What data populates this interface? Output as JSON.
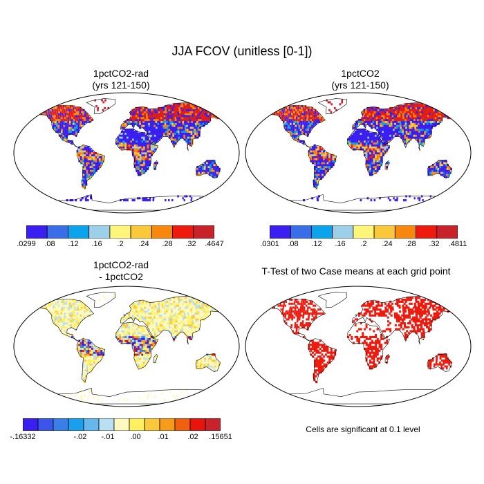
{
  "title": "JJA FCOV (unitless [0-1])",
  "panels": [
    {
      "title_line1": "1pctCO2-rad",
      "title_line2": "(yrs 121-150)"
    },
    {
      "title_line1": "1pctCO2",
      "title_line2": "(yrs 121-150)"
    },
    {
      "title_line1": "1pctCO2-rad",
      "title_line2": "- 1pctCO2"
    },
    {
      "title_line1": "T-Test of two Case means at each grid point",
      "title_line2": ""
    }
  ],
  "colorbars": [
    {
      "colors": [
        "#3b1ff0",
        "#3a6ee8",
        "#0aa3ec",
        "#9ccfe8",
        "#fff57a",
        "#fbc83c",
        "#f7870f",
        "#ef1a0e",
        "#c8232b"
      ],
      "labels": [
        ".0299",
        ".08",
        ".12",
        ".16",
        ".2",
        ".24",
        ".28",
        ".32",
        ".4647"
      ]
    },
    {
      "colors": [
        "#3b1ff0",
        "#3a6ee8",
        "#0aa3ec",
        "#9ccfe8",
        "#fff57a",
        "#fbc83c",
        "#f7870f",
        "#ef1a0e",
        "#c8232b"
      ],
      "labels": [
        ".0301",
        ".08",
        ".12",
        ".16",
        ".2",
        ".24",
        ".28",
        ".32",
        ".4811"
      ]
    },
    {
      "colors": [
        "#3b1ff0",
        "#3a55ea",
        "#3a7fe8",
        "#199fee",
        "#65b7ec",
        "#b8e0f2",
        "#fff9c0",
        "#fff060",
        "#fbc83c",
        "#f79c1a",
        "#f06010",
        "#e8150e",
        "#c8232b"
      ],
      "labels": [
        "-.16332",
        "-.02",
        "-.01",
        ".00",
        ".01",
        ".02",
        ".15651"
      ]
    }
  ],
  "note": "Cells are significant at 0.1 level"
}
